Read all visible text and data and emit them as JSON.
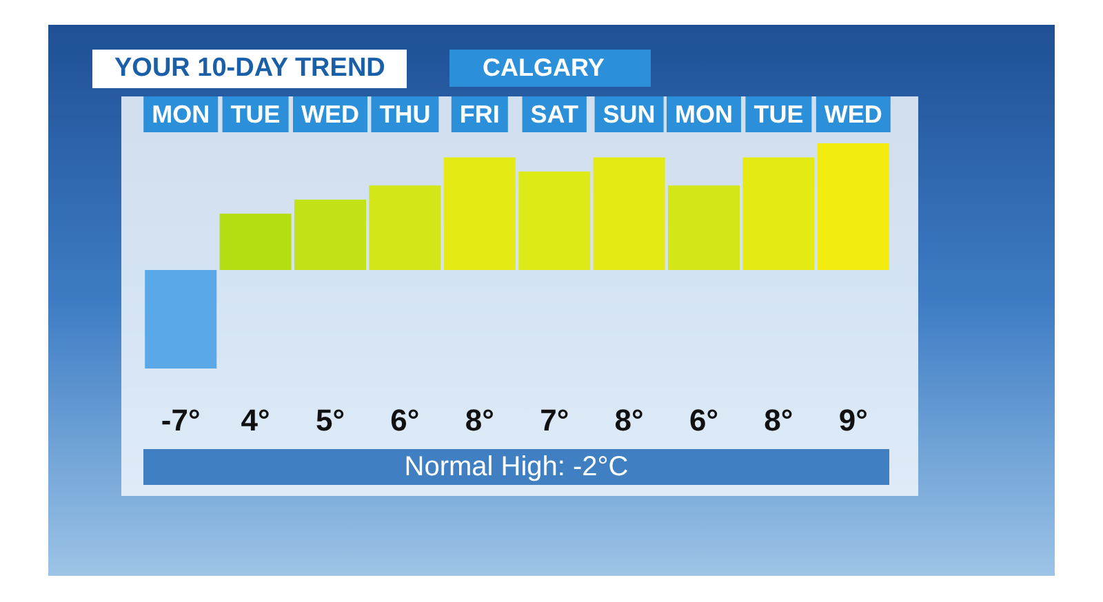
{
  "chart_data": {
    "type": "bar",
    "title": "YOUR 10-DAY TREND",
    "subtitle": "CALGARY",
    "categories": [
      "MON",
      "TUE",
      "WED",
      "THU",
      "FRI",
      "SAT",
      "SUN",
      "MON",
      "TUE",
      "WED"
    ],
    "values": [
      -7,
      4,
      5,
      6,
      8,
      7,
      8,
      6,
      8,
      9
    ],
    "colors": [
      "#5aa8e8",
      "#b4de12",
      "#c2e216",
      "#d2e618",
      "#e4ea14",
      "#deea16",
      "#e4ea14",
      "#d2e618",
      "#e4ea14",
      "#f2ec10"
    ],
    "value_labels": [
      "-7°",
      "4°",
      "5°",
      "6°",
      "8°",
      "7°",
      "8°",
      "6°",
      "8°",
      "9°"
    ],
    "annotations": [
      "Normal High:  -2°C"
    ],
    "grid": false
  }
}
